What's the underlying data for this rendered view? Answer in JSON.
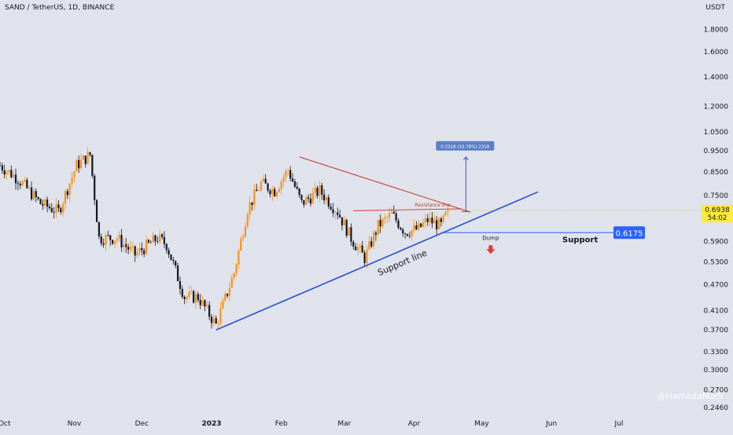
{
  "header": {
    "symbol": "SAND / TetherUS, 1D, BINANCE",
    "currency": "USDT"
  },
  "watermark": "@HamadaMark",
  "chart_data": {
    "type": "candlestick",
    "scale": "log",
    "ylim": [
      0.24,
      1.95
    ],
    "y_ticks": [
      {
        "value": 1.8,
        "label": "1.8000"
      },
      {
        "value": 1.6,
        "label": "1.6000"
      },
      {
        "value": 1.4,
        "label": "1.4000"
      },
      {
        "value": 1.2,
        "label": "1.2000"
      },
      {
        "value": 1.05,
        "label": "1.0500"
      },
      {
        "value": 0.95,
        "label": "0.9500"
      },
      {
        "value": 0.85,
        "label": "0.8500"
      },
      {
        "value": 0.75,
        "label": "0.7500"
      },
      {
        "value": 0.59,
        "label": "0.5900"
      },
      {
        "value": 0.53,
        "label": "0.5300"
      },
      {
        "value": 0.47,
        "label": "0.4700"
      },
      {
        "value": 0.41,
        "label": "0.4100"
      },
      {
        "value": 0.37,
        "label": "0.3700"
      },
      {
        "value": 0.33,
        "label": "0.3300"
      },
      {
        "value": 0.3,
        "label": "0.3000"
      },
      {
        "value": 0.27,
        "label": "0.2700"
      },
      {
        "value": 0.246,
        "label": "0.2460"
      }
    ],
    "x_ticks": [
      {
        "day": 2,
        "label": "Oct",
        "bold": false
      },
      {
        "day": 33,
        "label": "Nov",
        "bold": false
      },
      {
        "day": 63,
        "label": "Dec",
        "bold": false
      },
      {
        "day": 94,
        "label": "2023",
        "bold": true
      },
      {
        "day": 125,
        "label": "Feb",
        "bold": false
      },
      {
        "day": 153,
        "label": "Mar",
        "bold": false
      },
      {
        "day": 184,
        "label": "Apr",
        "bold": false
      },
      {
        "day": 214,
        "label": "May",
        "bold": false
      },
      {
        "day": 245,
        "label": "Jun",
        "bold": false
      },
      {
        "day": 275,
        "label": "Jul",
        "bold": false
      }
    ],
    "x_range_days": [
      0,
      311
    ],
    "colors": {
      "up": "#f7931a",
      "down": "#131722",
      "support": "#2451d6",
      "resistance": "#c0392b",
      "measure": "#4a4ed0",
      "price_tag": "#ffeb3b",
      "support_tag": "#2962ff",
      "dump_arrow": "#e53935"
    },
    "anchors": [
      {
        "day": 0,
        "close": 0.88
      },
      {
        "day": 8,
        "close": 0.82
      },
      {
        "day": 18,
        "close": 0.72
      },
      {
        "day": 26,
        "close": 0.69
      },
      {
        "day": 34,
        "close": 0.88
      },
      {
        "day": 40,
        "close": 0.93
      },
      {
        "day": 44,
        "close": 0.6
      },
      {
        "day": 52,
        "close": 0.6
      },
      {
        "day": 60,
        "close": 0.55
      },
      {
        "day": 70,
        "close": 0.6
      },
      {
        "day": 74,
        "close": 0.58
      },
      {
        "day": 82,
        "close": 0.44
      },
      {
        "day": 88,
        "close": 0.44
      },
      {
        "day": 96,
        "close": 0.38
      },
      {
        "day": 104,
        "close": 0.5
      },
      {
        "day": 110,
        "close": 0.7
      },
      {
        "day": 116,
        "close": 0.8
      },
      {
        "day": 122,
        "close": 0.77
      },
      {
        "day": 128,
        "close": 0.86
      },
      {
        "day": 134,
        "close": 0.72
      },
      {
        "day": 142,
        "close": 0.77
      },
      {
        "day": 150,
        "close": 0.69
      },
      {
        "day": 156,
        "close": 0.6
      },
      {
        "day": 162,
        "close": 0.54
      },
      {
        "day": 168,
        "close": 0.64
      },
      {
        "day": 174,
        "close": 0.68
      },
      {
        "day": 180,
        "close": 0.62
      },
      {
        "day": 186,
        "close": 0.63
      },
      {
        "day": 190,
        "close": 0.66
      },
      {
        "day": 196,
        "close": 0.64
      },
      {
        "day": 199,
        "close": 0.694
      }
    ],
    "current_price": {
      "value": 0.6938,
      "label": "0.6938",
      "countdown": "54:02"
    },
    "support_level": {
      "value": 0.6175,
      "label": "0.6175",
      "text": "Support",
      "from_day": 196,
      "to_day": 258
    },
    "support_line": {
      "from": {
        "day": 96,
        "price": 0.37
      },
      "to": {
        "day": 239,
        "price": 0.765
      },
      "label": "Support line"
    },
    "triangle_top": {
      "from": {
        "day": 133,
        "price": 0.92
      },
      "to": {
        "day": 209,
        "price": 0.688
      }
    },
    "resistance_line": {
      "from": {
        "day": 157,
        "price": 0.693
      },
      "to": {
        "day": 205,
        "price": 0.7
      },
      "label": "Resistance line"
    },
    "measure": {
      "day": 207,
      "from_price": 0.69,
      "to_price": 0.92,
      "label": "0.2318 (33.78%) 2318"
    },
    "dump": {
      "label": "Dump",
      "day": 218,
      "price": 0.585
    }
  }
}
